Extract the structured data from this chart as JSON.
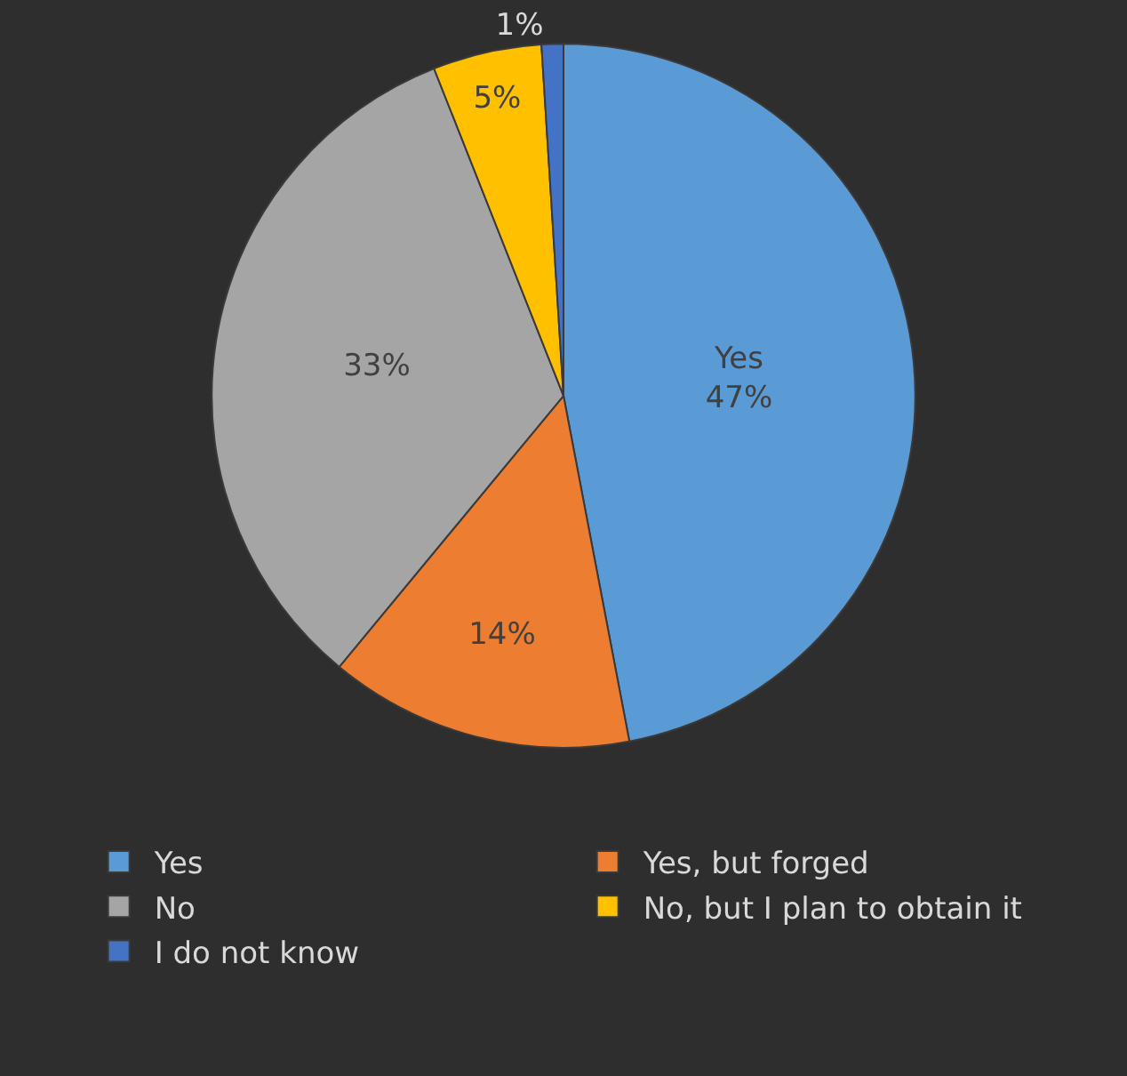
{
  "chart_data": {
    "type": "pie",
    "categories": [
      "Yes",
      "Yes, but forged",
      "No",
      "No, but I plan to obtain it",
      "I do not know"
    ],
    "values": [
      47,
      14,
      33,
      5,
      1
    ],
    "colors": [
      "#5b9bd5",
      "#ed7d31",
      "#a5a5a5",
      "#ffc000",
      "#4472c4"
    ],
    "value_labels": [
      "Yes\n47%",
      "14%",
      "33%",
      "5%",
      "1%"
    ],
    "legend": "bottom"
  }
}
